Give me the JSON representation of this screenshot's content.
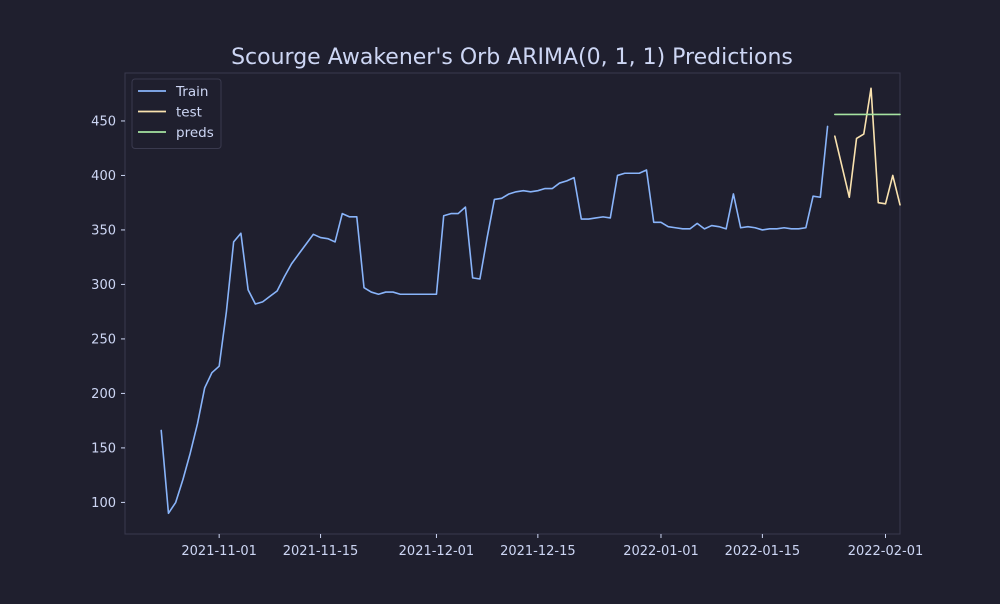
{
  "chart_data": {
    "type": "line",
    "title": "Scourge Awakener's Orb ARIMA(0, 1, 1) Predictions",
    "xlabel": "",
    "ylabel": "",
    "x_axis_type": "date",
    "xlim": [
      "2021-10-19",
      "2022-02-03"
    ],
    "ylim": [
      71,
      494
    ],
    "grid": false,
    "legend_position": "top-left",
    "x_ticks": [
      "2021-11-01",
      "2021-11-15",
      "2021-12-01",
      "2021-12-15",
      "2022-01-01",
      "2022-01-15",
      "2022-02-01"
    ],
    "y_ticks": [
      100,
      150,
      200,
      250,
      300,
      350,
      400,
      450
    ],
    "colors": {
      "background": "#1f1f2e",
      "text": "#cdd6f4",
      "axes_border": "#3a3a4e"
    },
    "series": [
      {
        "name": "Train",
        "color": "#89b4fa",
        "points": [
          [
            "2021-10-24",
            166
          ],
          [
            "2021-10-25",
            90
          ],
          [
            "2021-10-26",
            100
          ],
          [
            "2021-10-27",
            121
          ],
          [
            "2021-10-28",
            145
          ],
          [
            "2021-10-29",
            172
          ],
          [
            "2021-10-30",
            205
          ],
          [
            "2021-10-31",
            219
          ],
          [
            "2021-11-01",
            225
          ],
          [
            "2021-11-02",
            275
          ],
          [
            "2021-11-03",
            339
          ],
          [
            "2021-11-04",
            347
          ],
          [
            "2021-11-05",
            295
          ],
          [
            "2021-11-06",
            282
          ],
          [
            "2021-11-07",
            284
          ],
          [
            "2021-11-08",
            289
          ],
          [
            "2021-11-09",
            294
          ],
          [
            "2021-11-10",
            307
          ],
          [
            "2021-11-11",
            319
          ],
          [
            "2021-11-12",
            328
          ],
          [
            "2021-11-13",
            337
          ],
          [
            "2021-11-14",
            346
          ],
          [
            "2021-11-15",
            343
          ],
          [
            "2021-11-16",
            342
          ],
          [
            "2021-11-17",
            339
          ],
          [
            "2021-11-18",
            365
          ],
          [
            "2021-11-19",
            362
          ],
          [
            "2021-11-20",
            362
          ],
          [
            "2021-11-21",
            297
          ],
          [
            "2021-11-22",
            293
          ],
          [
            "2021-11-23",
            291
          ],
          [
            "2021-11-24",
            293
          ],
          [
            "2021-11-25",
            293
          ],
          [
            "2021-11-26",
            291
          ],
          [
            "2021-11-27",
            291
          ],
          [
            "2021-11-28",
            291
          ],
          [
            "2021-11-29",
            291
          ],
          [
            "2021-11-30",
            291
          ],
          [
            "2021-12-01",
            291
          ],
          [
            "2021-12-02",
            363
          ],
          [
            "2021-12-03",
            365
          ],
          [
            "2021-12-04",
            365
          ],
          [
            "2021-12-05",
            371
          ],
          [
            "2021-12-06",
            306
          ],
          [
            "2021-12-07",
            305
          ],
          [
            "2021-12-08",
            343
          ],
          [
            "2021-12-09",
            378
          ],
          [
            "2021-12-10",
            379
          ],
          [
            "2021-12-11",
            383
          ],
          [
            "2021-12-12",
            385
          ],
          [
            "2021-12-13",
            386
          ],
          [
            "2021-12-14",
            385
          ],
          [
            "2021-12-15",
            386
          ],
          [
            "2021-12-16",
            388
          ],
          [
            "2021-12-17",
            388
          ],
          [
            "2021-12-18",
            393
          ],
          [
            "2021-12-19",
            395
          ],
          [
            "2021-12-20",
            398
          ],
          [
            "2021-12-21",
            360
          ],
          [
            "2021-12-22",
            360
          ],
          [
            "2021-12-23",
            361
          ],
          [
            "2021-12-24",
            362
          ],
          [
            "2021-12-25",
            361
          ],
          [
            "2021-12-26",
            400
          ],
          [
            "2021-12-27",
            402
          ],
          [
            "2021-12-28",
            402
          ],
          [
            "2021-12-29",
            402
          ],
          [
            "2021-12-30",
            405
          ],
          [
            "2021-12-31",
            357
          ],
          [
            "2022-01-01",
            357
          ],
          [
            "2022-01-02",
            353
          ],
          [
            "2022-01-03",
            352
          ],
          [
            "2022-01-04",
            351
          ],
          [
            "2022-01-05",
            351
          ],
          [
            "2022-01-06",
            356
          ],
          [
            "2022-01-07",
            351
          ],
          [
            "2022-01-08",
            354
          ],
          [
            "2022-01-09",
            353
          ],
          [
            "2022-01-10",
            351
          ],
          [
            "2022-01-11",
            383
          ],
          [
            "2022-01-12",
            352
          ],
          [
            "2022-01-13",
            353
          ],
          [
            "2022-01-14",
            352
          ],
          [
            "2022-01-15",
            350
          ],
          [
            "2022-01-16",
            351
          ],
          [
            "2022-01-17",
            351
          ],
          [
            "2022-01-18",
            352
          ],
          [
            "2022-01-19",
            351
          ],
          [
            "2022-01-20",
            351
          ],
          [
            "2022-01-21",
            352
          ],
          [
            "2022-01-22",
            381
          ],
          [
            "2022-01-23",
            380
          ],
          [
            "2022-01-24",
            445
          ]
        ]
      },
      {
        "name": "test",
        "color": "#f9e2af",
        "points": [
          [
            "2022-01-25",
            436
          ],
          [
            "2022-01-26",
            408
          ],
          [
            "2022-01-27",
            380
          ],
          [
            "2022-01-28",
            434
          ],
          [
            "2022-01-29",
            438
          ],
          [
            "2022-01-30",
            480
          ],
          [
            "2022-01-31",
            375
          ],
          [
            "2022-02-01",
            374
          ],
          [
            "2022-02-02",
            400
          ],
          [
            "2022-02-03",
            373
          ]
        ]
      },
      {
        "name": "preds",
        "color": "#a6e3a1",
        "points": [
          [
            "2022-01-25",
            456
          ],
          [
            "2022-02-03",
            456
          ]
        ]
      }
    ]
  }
}
